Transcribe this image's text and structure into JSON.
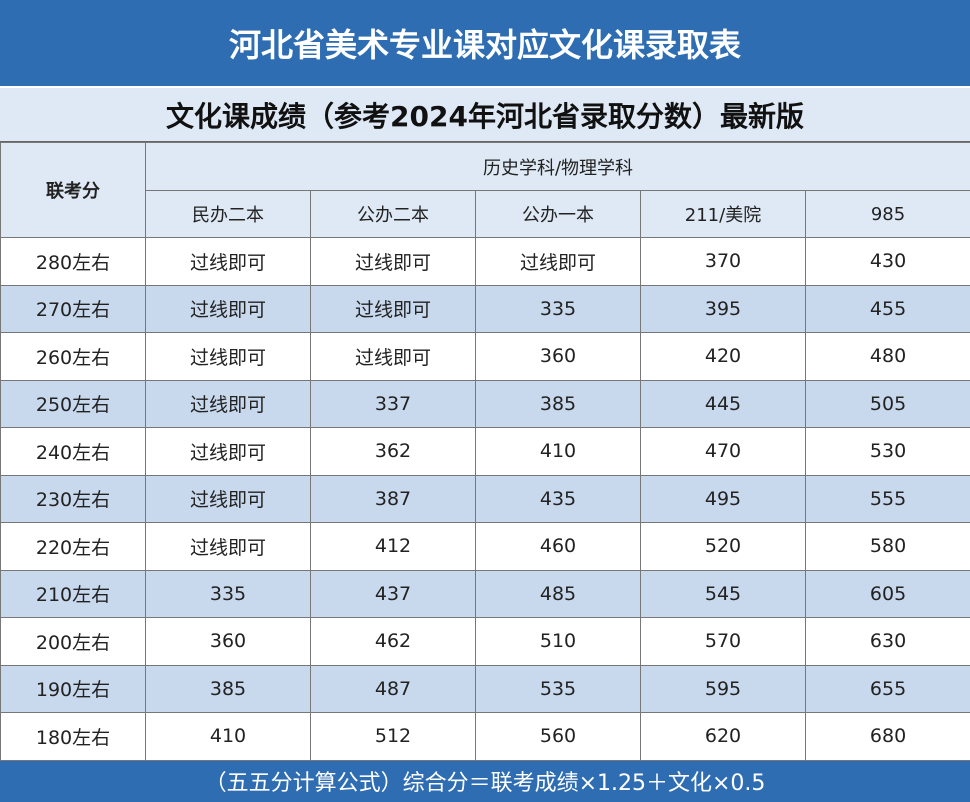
{
  "title": "河北省美术专业课对应文化课录取表",
  "subtitle": "文化课成绩（参考2024年河北省录取分数）最新版",
  "table": {
    "row_header": "联考分",
    "group_header": "历史学科/物理学科",
    "columns": [
      "民办二本",
      "公办二本",
      "公办一本",
      "211/美院",
      985
    ],
    "rows": [
      [
        "280左右",
        "过线即可",
        "过线即可",
        "过线即可",
        370,
        430
      ],
      [
        "270左右",
        "过线即可",
        "过线即可",
        335,
        395,
        455
      ],
      [
        "260左右",
        "过线即可",
        "过线即可",
        360,
        420,
        480
      ],
      [
        "250左右",
        "过线即可",
        337,
        385,
        445,
        505
      ],
      [
        "240左右",
        "过线即可",
        362,
        410,
        470,
        530
      ],
      [
        "230左右",
        "过线即可",
        387,
        435,
        495,
        555
      ],
      [
        "220左右",
        "过线即可",
        412,
        460,
        520,
        580
      ],
      [
        "210左右",
        335,
        437,
        485,
        545,
        605
      ],
      [
        "200左右",
        360,
        462,
        510,
        570,
        630
      ],
      [
        "190左右",
        385,
        487,
        535,
        595,
        655
      ],
      [
        "180左右",
        410,
        512,
        560,
        620,
        680
      ]
    ]
  },
  "footer": "（五五分计算公式）综合分＝联考成绩×1.25＋文化×0.5"
}
